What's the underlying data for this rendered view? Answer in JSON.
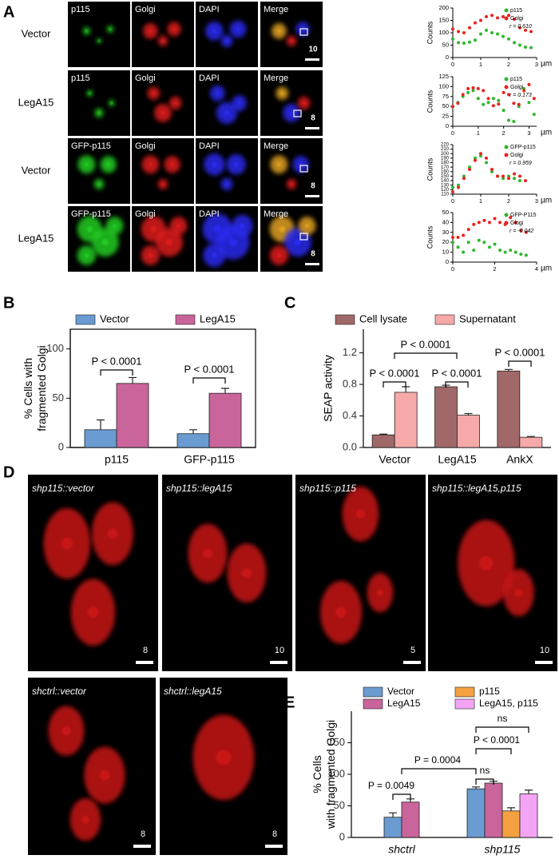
{
  "panel_labels": [
    "A",
    "B",
    "C",
    "D",
    "E"
  ],
  "panel_a": {
    "rows": [
      {
        "label": "Vector",
        "channels": [
          "p115",
          "Golgi",
          "DAPI",
          "Merge"
        ],
        "scale": 10
      },
      {
        "label": "LegA15",
        "channels": [
          "p115",
          "Golgi",
          "DAPI",
          "Merge"
        ],
        "scale": 8
      },
      {
        "label": "Vector",
        "channels": [
          "GFP-p115",
          "Golgi",
          "DAPI",
          "Merge"
        ],
        "scale": 8
      },
      {
        "label": "LegA15",
        "channels": [
          "GFP-p115",
          "Golgi",
          "DAPI",
          "Merge"
        ],
        "scale": 8
      }
    ]
  },
  "panel_d": {
    "images": [
      {
        "label": "shp115::vector",
        "scale": 8
      },
      {
        "label": "shp115::legA15",
        "scale": 10
      },
      {
        "label": "shp115::p115",
        "scale": 5
      },
      {
        "label": "shp115::legA15,p115",
        "scale": 10
      },
      {
        "label": "shctrl::vector",
        "scale": 8
      },
      {
        "label": "shctrl::legA15",
        "scale": 8
      }
    ]
  },
  "chart_data": [
    {
      "type": "scatter",
      "y_label": "Counts",
      "x_label": "µm",
      "annotation": "r = 0.610",
      "xlim": [
        0,
        3
      ],
      "xticks": [
        0,
        1,
        2,
        3
      ],
      "ylim": [
        0,
        200
      ],
      "yticks": [
        0,
        50,
        100,
        150,
        200
      ],
      "series": [
        {
          "name": "p115",
          "color": "#2db82d",
          "x": [
            0,
            0.2,
            0.4,
            0.6,
            0.8,
            1.0,
            1.2,
            1.4,
            1.6,
            1.8,
            2.0,
            2.2,
            2.4,
            2.6,
            2.8
          ],
          "values": [
            75,
            60,
            58,
            62,
            70,
            95,
            110,
            100,
            95,
            85,
            75,
            60,
            50,
            42,
            40
          ]
        },
        {
          "name": "Golgi",
          "color": "#e8231f",
          "x": [
            0,
            0.2,
            0.4,
            0.6,
            0.8,
            1.0,
            1.2,
            1.4,
            1.6,
            1.8,
            2.0,
            2.2,
            2.4,
            2.6,
            2.8
          ],
          "values": [
            115,
            105,
            100,
            120,
            140,
            150,
            165,
            170,
            160,
            165,
            170,
            155,
            120,
            110,
            105
          ]
        }
      ]
    },
    {
      "type": "scatter",
      "y_label": "Counts",
      "x_label": "µm",
      "annotation": "r = 0.173",
      "xlim": [
        0,
        3.3
      ],
      "xticks": [
        0,
        1,
        2,
        3
      ],
      "ylim": [
        0,
        125
      ],
      "yticks": [
        0,
        25,
        50,
        75,
        100,
        125
      ],
      "series": [
        {
          "name": "p115",
          "color": "#2db82d",
          "x": [
            0,
            0.2,
            0.4,
            0.6,
            0.8,
            1.0,
            1.2,
            1.4,
            1.6,
            1.8,
            2.0,
            2.2,
            2.4,
            2.6,
            2.8,
            3.0,
            3.2
          ],
          "values": [
            50,
            60,
            75,
            85,
            90,
            70,
            55,
            60,
            70,
            65,
            40,
            15,
            12,
            50,
            95,
            60,
            30
          ]
        },
        {
          "name": "Golgi",
          "color": "#e8231f",
          "x": [
            0,
            0.2,
            0.4,
            0.6,
            0.8,
            1.0,
            1.2,
            1.4,
            1.6,
            1.8,
            2.0,
            2.2,
            2.4,
            2.6,
            2.8,
            3.0,
            3.2
          ],
          "values": [
            50,
            58,
            80,
            95,
            97,
            95,
            90,
            70,
            52,
            56,
            85,
            80,
            58,
            55,
            90,
            105,
            70
          ]
        }
      ]
    },
    {
      "type": "scatter",
      "y_label": "Counts",
      "x_label": "µm",
      "annotation": "r = 0.959",
      "xlim": [
        0,
        3
      ],
      "xticks": [
        0,
        1,
        2,
        3
      ],
      "ylim": [
        110,
        220
      ],
      "yticks": [
        110,
        120,
        130,
        140,
        150,
        160,
        170,
        180,
        190,
        200,
        210,
        220
      ],
      "series": [
        {
          "name": "GFP-p115",
          "color": "#2db82d",
          "x": [
            0,
            0.2,
            0.4,
            0.6,
            0.8,
            1.0,
            1.2,
            1.4,
            1.6,
            1.8,
            2.0,
            2.2,
            2.4
          ],
          "values": [
            125,
            130,
            150,
            170,
            190,
            195,
            180,
            160,
            150,
            145,
            150,
            145,
            140
          ]
        },
        {
          "name": "Golgi",
          "color": "#e8231f",
          "x": [
            0,
            0.2,
            0.4,
            0.6,
            0.8,
            1.0,
            1.2,
            1.4,
            1.6,
            1.8,
            2.0,
            2.2,
            2.4,
            2.6
          ],
          "values": [
            115,
            125,
            145,
            165,
            185,
            200,
            190,
            165,
            150,
            150,
            145,
            155,
            150,
            140
          ]
        }
      ]
    },
    {
      "type": "scatter",
      "y_label": "Counts",
      "x_label": "µm",
      "annotation": "r = -0.042",
      "xlim": [
        0,
        4
      ],
      "xticks": [
        0,
        2,
        4
      ],
      "ylim": [
        0,
        50
      ],
      "yticks": [
        0,
        10,
        20,
        30,
        40,
        50
      ],
      "series": [
        {
          "name": "GFP-P115",
          "color": "#2db82d",
          "x": [
            0,
            0.25,
            0.5,
            0.75,
            1.0,
            1.25,
            1.5,
            1.75,
            2.0,
            2.25,
            2.5,
            2.75,
            3.0,
            3.25,
            3.5
          ],
          "values": [
            20,
            15,
            10,
            20,
            12,
            22,
            20,
            15,
            18,
            12,
            10,
            12,
            10,
            8,
            7
          ]
        },
        {
          "name": "Glogi",
          "color": "#e8231f",
          "x": [
            0,
            0.25,
            0.5,
            0.75,
            1.0,
            1.25,
            1.5,
            1.75,
            2.0,
            2.25,
            2.5,
            2.75,
            3.0,
            3.25,
            3.5
          ],
          "values": [
            25,
            25,
            27,
            33,
            38,
            40,
            42,
            40,
            44,
            40,
            38,
            45,
            40,
            32,
            30
          ]
        }
      ]
    },
    {
      "type": "bar",
      "y_label": [
        "% Cells with",
        "fragmented Golgi"
      ],
      "categories": [
        "p115",
        "GFP-p115"
      ],
      "ylim": [
        0,
        120
      ],
      "yticks": [
        0,
        50,
        100
      ],
      "series": [
        {
          "name": "Vector",
          "color": "#6a9bd1",
          "values": [
            18,
            14
          ],
          "errors": [
            10,
            4
          ]
        },
        {
          "name": "LegA15",
          "color": "#c9659a",
          "values": [
            65,
            55
          ],
          "errors": [
            6,
            5
          ]
        }
      ],
      "annotations": [
        "P < 0.0001",
        "P < 0.0001"
      ]
    },
    {
      "type": "bar",
      "y_label": [
        "SEAP activity"
      ],
      "categories": [
        "Vector",
        "LegA15",
        "AnkX"
      ],
      "ylim": [
        0,
        1.5
      ],
      "yticks": [
        {
          "value": 0,
          "label": "0.0"
        },
        0.4,
        0.8,
        1.2
      ],
      "series": [
        {
          "name": "Cell lysate",
          "color": "#a06868",
          "values": [
            0.16,
            0.77,
            0.97
          ],
          "errors": [
            0.01,
            0.02,
            0.02
          ]
        },
        {
          "name": "Supernatant",
          "color": "#f5a9a9",
          "values": [
            0.7,
            0.41,
            0.13
          ],
          "errors": [
            0.07,
            0.02,
            0.01
          ]
        }
      ],
      "annotations": [
        "P < 0.0001",
        "P < 0.0001",
        "P < 0.0001",
        "P < 0.0001"
      ]
    },
    {
      "type": "bar",
      "y_label": [
        "% Cells",
        "with fragmented Golgi"
      ],
      "categories": [
        "shctrl",
        "shp115"
      ],
      "ylim": [
        0,
        200
      ],
      "yticks": [
        0,
        50,
        100,
        150
      ],
      "series": [
        {
          "name": "Vector",
          "color": "#6a9bd1",
          "values": [
            32,
            77
          ],
          "errors": [
            7,
            3
          ]
        },
        {
          "name": "LegA15",
          "color": "#c9659a",
          "values": [
            56,
            86
          ],
          "errors": [
            5,
            3
          ]
        },
        {
          "name": "p115",
          "color": "#f5a142",
          "values": [
            null,
            42
          ],
          "errors": [
            null,
            5
          ]
        },
        {
          "name": "LegA15, p115",
          "color": "#f4a4f4",
          "values": [
            null,
            69
          ],
          "errors": [
            null,
            6
          ]
        }
      ],
      "annotations": [
        "P = 0.0049",
        "P = 0.0004",
        "ns",
        "P < 0.0001",
        "ns"
      ]
    }
  ]
}
